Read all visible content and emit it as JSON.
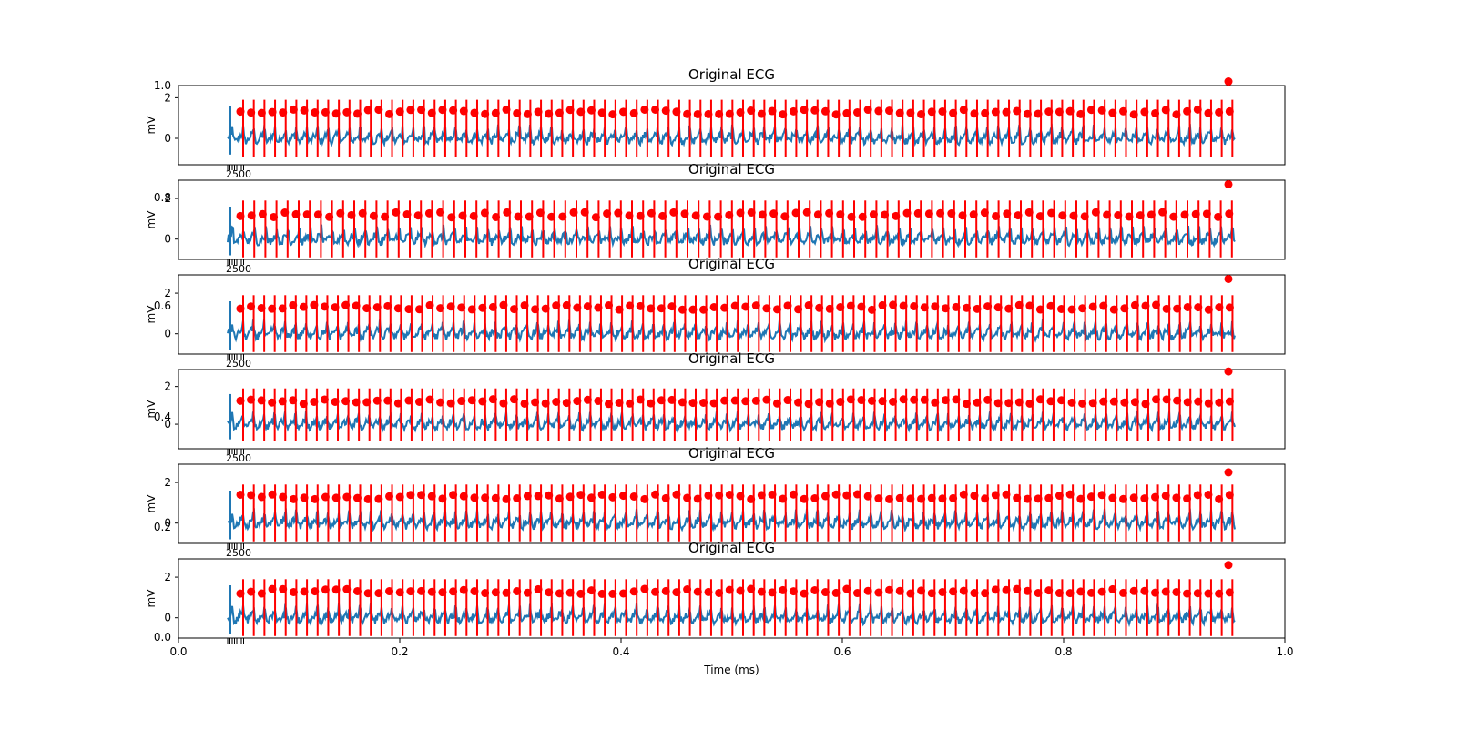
{
  "figure": {
    "background": "#ffffff",
    "signal_color": "#1f77b4",
    "marker_color": "#ff0000",
    "xlabel_text": "Time (ms)"
  },
  "chart_data": [
    {
      "type": "line",
      "title": "Original ECG",
      "ylabel": "mV",
      "ylim": [
        -1.3,
        2.6
      ],
      "yticks": [
        0,
        2
      ],
      "signal_samples": 1200,
      "series": [
        {
          "values_description": "ECG trace",
          "color": "#1f77b4"
        },
        {
          "values_description": "R-peak markers",
          "color": "#ff0000"
        }
      ],
      "beats": 94,
      "marker_level": 1.3,
      "last_marker": 2.8
    },
    {
      "type": "line",
      "title": "Original ECG",
      "ylabel": "mV",
      "ylim": [
        -1.0,
        2.9
      ],
      "yticks": [
        0,
        2
      ],
      "beats": 90,
      "marker_level": 1.2,
      "last_marker": 2.7
    },
    {
      "type": "line",
      "title": "Original ECG",
      "ylabel": "mV",
      "ylim": [
        -1.0,
        2.9
      ],
      "yticks": [
        0,
        2
      ],
      "beats": 95,
      "marker_level": 1.3,
      "last_marker": 2.7
    },
    {
      "type": "line",
      "title": "Original ECG",
      "ylabel": "mV",
      "ylim": [
        -1.3,
        2.9
      ],
      "yticks": [
        0,
        2
      ],
      "beats": 95,
      "marker_level": 1.2,
      "last_marker": 2.8
    },
    {
      "type": "line",
      "title": "Original ECG",
      "ylabel": "mV",
      "ylim": [
        -1.0,
        2.9
      ],
      "yticks": [
        0,
        2
      ],
      "beats": 94,
      "marker_level": 1.3,
      "last_marker": 2.5
    },
    {
      "type": "line",
      "title": "Original ECG",
      "ylabel": "mV",
      "ylim": [
        -1.0,
        2.9
      ],
      "yticks": [
        0,
        2
      ],
      "beats": 94,
      "marker_level": 1.3,
      "last_marker": 2.6
    }
  ],
  "overlay_axis": {
    "xticks": [
      "0.0",
      "0.2",
      "0.4",
      "0.6",
      "0.8",
      "1.0"
    ],
    "yticks_right_side_bleed": [
      "1.0",
      "0.8",
      "0.6",
      "0.4",
      "0.2",
      "0.0"
    ],
    "xlabel": "Time (ms)"
  }
}
